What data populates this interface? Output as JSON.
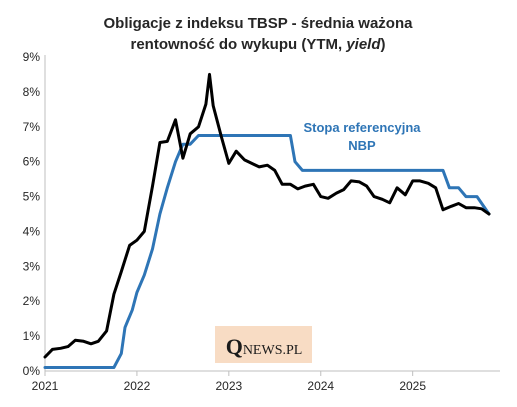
{
  "chart_data": {
    "type": "line",
    "title_lines": [
      "Obligacje z indeksu TBSP - średnia ważona",
      "rentowność do wykupu (YTM, ",
      "yield",
      ")"
    ],
    "xlabel": "",
    "ylabel": "",
    "y_ticks": [
      "0%",
      "1%",
      "2%",
      "3%",
      "4%",
      "5%",
      "6%",
      "7%",
      "8%",
      "9%"
    ],
    "ylim": [
      0,
      9
    ],
    "x_ticks": [
      "2021",
      "2022",
      "2023",
      "2024",
      "2025"
    ],
    "xlim": [
      2021.0,
      2025.95
    ],
    "grid": false,
    "legend": "none",
    "series": [
      {
        "name": "",
        "color": "#000000",
        "points": [
          [
            2021.0,
            0.4
          ],
          [
            2021.08,
            0.62
          ],
          [
            2021.17,
            0.65
          ],
          [
            2021.25,
            0.7
          ],
          [
            2021.33,
            0.88
          ],
          [
            2021.42,
            0.85
          ],
          [
            2021.5,
            0.78
          ],
          [
            2021.58,
            0.85
          ],
          [
            2021.67,
            1.15
          ],
          [
            2021.75,
            2.2
          ],
          [
            2021.83,
            2.85
          ],
          [
            2021.92,
            3.6
          ],
          [
            2022.0,
            3.75
          ],
          [
            2022.08,
            4.0
          ],
          [
            2022.17,
            5.3
          ],
          [
            2022.25,
            6.55
          ],
          [
            2022.33,
            6.58
          ],
          [
            2022.42,
            7.2
          ],
          [
            2022.5,
            6.1
          ],
          [
            2022.58,
            6.8
          ],
          [
            2022.67,
            7.0
          ],
          [
            2022.75,
            7.65
          ],
          [
            2022.79,
            8.5
          ],
          [
            2022.83,
            7.6
          ],
          [
            2022.92,
            6.7
          ],
          [
            2023.0,
            5.95
          ],
          [
            2023.08,
            6.3
          ],
          [
            2023.17,
            6.05
          ],
          [
            2023.25,
            5.95
          ],
          [
            2023.33,
            5.85
          ],
          [
            2023.42,
            5.9
          ],
          [
            2023.5,
            5.75
          ],
          [
            2023.58,
            5.35
          ],
          [
            2023.67,
            5.35
          ],
          [
            2023.75,
            5.22
          ],
          [
            2023.83,
            5.3
          ],
          [
            2023.92,
            5.35
          ],
          [
            2024.0,
            5.0
          ],
          [
            2024.08,
            4.95
          ],
          [
            2024.17,
            5.1
          ],
          [
            2024.25,
            5.2
          ],
          [
            2024.33,
            5.45
          ],
          [
            2024.42,
            5.42
          ],
          [
            2024.5,
            5.3
          ],
          [
            2024.58,
            5.0
          ],
          [
            2024.67,
            4.92
          ],
          [
            2024.75,
            4.82
          ],
          [
            2024.83,
            5.25
          ],
          [
            2024.92,
            5.05
          ],
          [
            2025.0,
            5.45
          ],
          [
            2025.08,
            5.45
          ],
          [
            2025.17,
            5.38
          ],
          [
            2025.25,
            5.25
          ],
          [
            2025.33,
            4.62
          ],
          [
            2025.42,
            4.72
          ],
          [
            2025.5,
            4.8
          ],
          [
            2025.58,
            4.68
          ],
          [
            2025.67,
            4.68
          ],
          [
            2025.75,
            4.65
          ],
          [
            2025.83,
            4.5
          ]
        ]
      },
      {
        "name": "Stopa referencyjna NBP",
        "color": "#2e75b6",
        "points": [
          [
            2021.0,
            0.1
          ],
          [
            2021.75,
            0.1
          ],
          [
            2021.83,
            0.5
          ],
          [
            2021.87,
            1.25
          ],
          [
            2021.95,
            1.75
          ],
          [
            2022.0,
            2.25
          ],
          [
            2022.08,
            2.75
          ],
          [
            2022.17,
            3.5
          ],
          [
            2022.25,
            4.5
          ],
          [
            2022.33,
            5.25
          ],
          [
            2022.42,
            6.0
          ],
          [
            2022.5,
            6.5
          ],
          [
            2022.58,
            6.5
          ],
          [
            2022.67,
            6.75
          ],
          [
            2023.67,
            6.75
          ],
          [
            2023.72,
            6.0
          ],
          [
            2023.8,
            5.75
          ],
          [
            2025.33,
            5.75
          ],
          [
            2025.4,
            5.25
          ],
          [
            2025.5,
            5.25
          ],
          [
            2025.58,
            5.0
          ],
          [
            2025.7,
            5.0
          ],
          [
            2025.83,
            4.5
          ]
        ]
      }
    ],
    "annotation": [
      "Stopa referencyjna",
      "NBP"
    ],
    "annotation_color": "#2e75b6"
  },
  "logo": {
    "q": "Q",
    "rest": "NEWS.PL"
  }
}
